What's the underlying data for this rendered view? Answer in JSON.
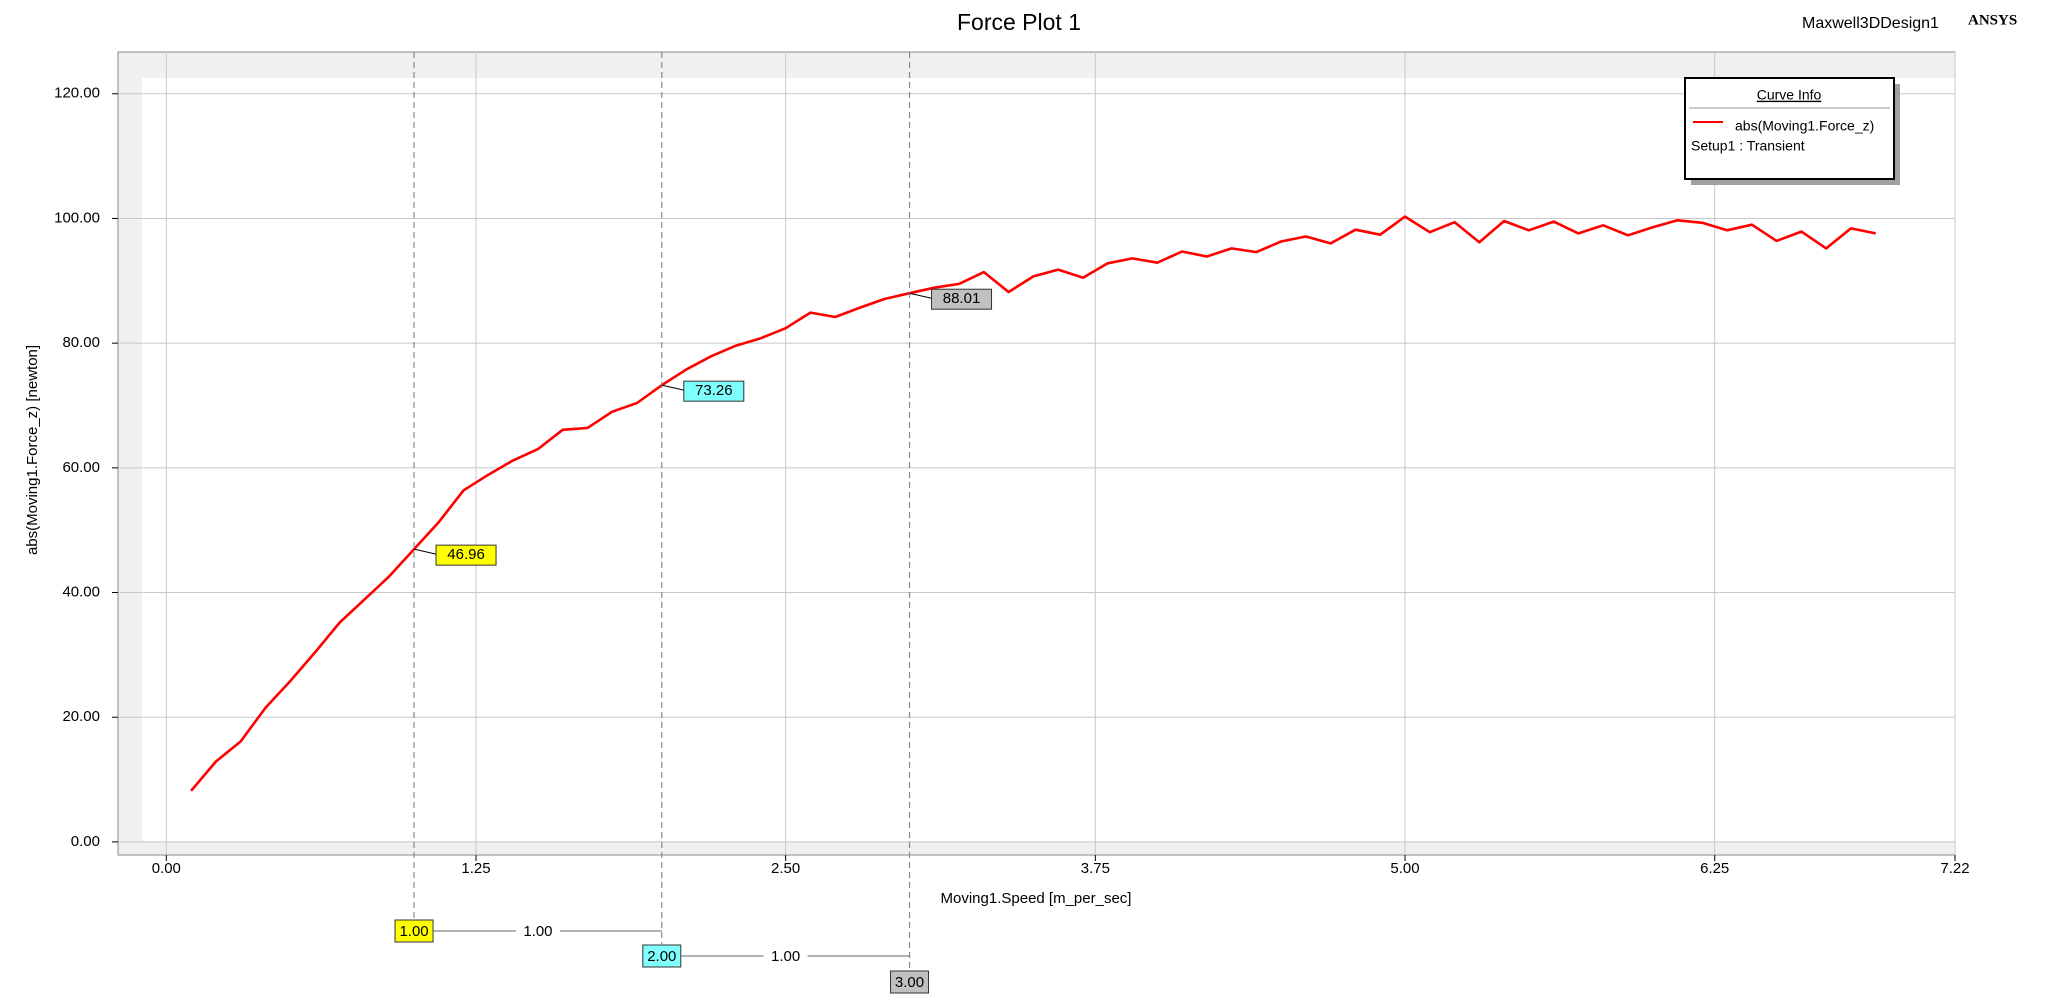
{
  "chart_data": {
    "type": "line",
    "title": "Force Plot 1",
    "design_name": "Maxwell3DDesign1",
    "brand": "ANSYS",
    "x_label": "Moving1.Speed [m_per_sec]",
    "y_label": "abs(Moving1.Force_z) [newton]",
    "legend_title": "Curve Info",
    "legend_setup": "Setup1 : Transient",
    "legend": "upper right",
    "grid": true,
    "xlim": [
      -0.195,
      7.22
    ],
    "ylim": [
      -2.1,
      126.7
    ],
    "xticks": [
      {
        "value": 0,
        "label": "0.00"
      },
      {
        "value": 1.25,
        "label": "1.25"
      },
      {
        "value": 2.5,
        "label": "2.50"
      },
      {
        "value": 3.75,
        "label": "3.75"
      },
      {
        "value": 5,
        "label": "5.00"
      },
      {
        "value": 6.25,
        "label": "6.25"
      },
      {
        "value": 7.22,
        "label": "7.22"
      }
    ],
    "yticks": [
      {
        "value": 0,
        "label": "0.00"
      },
      {
        "value": 20,
        "label": "20.00"
      },
      {
        "value": 40,
        "label": "40.00"
      },
      {
        "value": 60,
        "label": "60.00"
      },
      {
        "value": 80,
        "label": "80.00"
      },
      {
        "value": 100,
        "label": "100.00"
      },
      {
        "value": 120,
        "label": "120.00"
      }
    ],
    "x": [
      0.1,
      0.2,
      0.3,
      0.4,
      0.5,
      0.6,
      0.7,
      0.8,
      0.9,
      1.0,
      1.1,
      1.2,
      1.3,
      1.4,
      1.5,
      1.6,
      1.7,
      1.8,
      1.9,
      2.0,
      2.1,
      2.2,
      2.3,
      2.4,
      2.5,
      2.6,
      2.7,
      2.8,
      2.9,
      3.0,
      3.1,
      3.2,
      3.3,
      3.4,
      3.5,
      3.6,
      3.7,
      3.8,
      3.9,
      4.0,
      4.1,
      4.2,
      4.3,
      4.4,
      4.5,
      4.6,
      4.7,
      4.8,
      4.9,
      5.0,
      5.1,
      5.2,
      5.3,
      5.4,
      5.5,
      5.6,
      5.7,
      5.8,
      5.9,
      6.0,
      6.1,
      6.2,
      6.3,
      6.4,
      6.5,
      6.6,
      6.7,
      6.8,
      6.9
    ],
    "series": [
      {
        "name": "abs(Moving1.Force_z)",
        "color": "#ff0000",
        "values": [
          8.2,
          12.9,
          16.1,
          21.5,
          25.8,
          30.4,
          35.2,
          38.9,
          42.6,
          46.96,
          51.3,
          56.4,
          58.9,
          61.2,
          63.0,
          66.1,
          66.4,
          69.0,
          70.4,
          73.26,
          75.8,
          77.9,
          79.6,
          80.8,
          82.4,
          84.9,
          84.2,
          85.7,
          87.1,
          88.01,
          88.9,
          89.5,
          91.4,
          88.2,
          90.7,
          91.8,
          90.5,
          92.8,
          93.6,
          92.9,
          94.7,
          93.9,
          95.2,
          94.6,
          96.3,
          97.1,
          96.0,
          98.2,
          97.4,
          100.3,
          97.8,
          99.4,
          96.2,
          99.6,
          98.1,
          99.5,
          97.6,
          98.9,
          97.3,
          98.6,
          99.7,
          99.3,
          98.1,
          99.0,
          96.4,
          97.9,
          95.2,
          98.4,
          97.6
        ]
      }
    ],
    "markers": [
      {
        "x": {
          "value": 1,
          "label": "1.00"
        },
        "value": 46.96,
        "color": "#ffff00"
      },
      {
        "x": {
          "value": 2,
          "label": "2.00"
        },
        "value": 73.26,
        "color": "#80ffff"
      },
      {
        "x": {
          "value": 3,
          "label": "3.00"
        },
        "value": 88.01,
        "color": "#c0c0c0"
      }
    ],
    "deltas": [
      {
        "value": 1,
        "label": "1.00"
      },
      {
        "value": 1,
        "label": "1.00"
      }
    ]
  }
}
